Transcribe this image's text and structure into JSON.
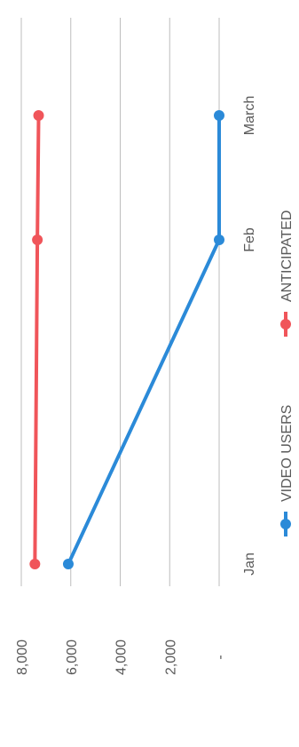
{
  "chart_data": {
    "type": "line",
    "orientation": "rotated-90-ccw",
    "categories": [
      "Jan",
      "Feb",
      "March"
    ],
    "series": [
      {
        "name": "VIDEO USERS",
        "values": [
          6100,
          0,
          0
        ],
        "color": "#2b8ad8"
      },
      {
        "name": "ANTICIPATED",
        "values": [
          7450,
          7350,
          7300
        ],
        "color": "#f0555a"
      }
    ],
    "y_tick_labels": [
      "-",
      "2,000",
      "4,000",
      "6,000",
      "8,000"
    ],
    "y_ticks": [
      0,
      2000,
      4000,
      6000,
      8000
    ],
    "ylim": [
      0,
      8000
    ],
    "grid": true,
    "legend_position": "bottom",
    "gridline_color": "#bdbdbd",
    "text_color": "#595959"
  }
}
